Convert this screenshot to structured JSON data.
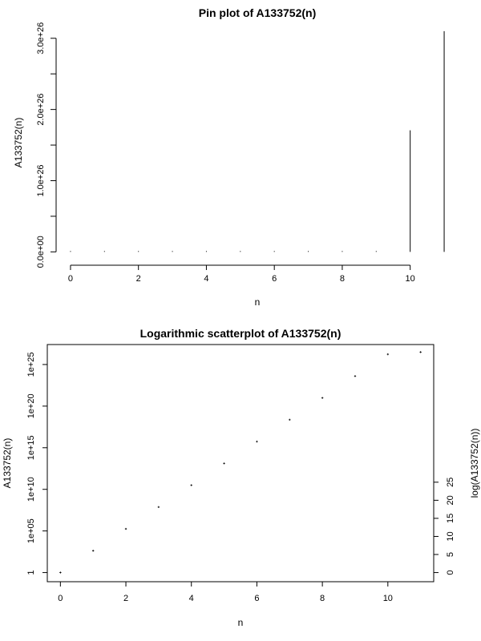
{
  "chart_data": [
    {
      "type": "bar",
      "subtype": "pin",
      "title": "Pin plot of A133752(n)",
      "xlabel": "n",
      "ylabel": "A133752(n)",
      "x": [
        0,
        1,
        2,
        3,
        4,
        5,
        6,
        7,
        8,
        9,
        10,
        11
      ],
      "y": [
        1,
        420,
        176400,
        74088000,
        31116960000,
        13069123200000,
        5489031744000000,
        2305393332480000000,
        968265199641600000000,
        406671383849472000000000,
        170801981216778240000000000,
        310000000000000000000000000
      ],
      "xlim": [
        -0.4,
        11.4
      ],
      "ylim": [
        -1.2e+25,
        3.2e+26
      ],
      "xticks": [
        0,
        2,
        4,
        6,
        8,
        10
      ],
      "xtick_labels": [
        "0",
        "2",
        "4",
        "6",
        "8",
        "10"
      ],
      "yticks": [
        0,
        1e+26,
        2e+26,
        3e+26
      ],
      "ytick_labels": [
        "0.0e+00",
        "1.0e+26",
        "2.0e+26",
        "3.0e+26"
      ],
      "yticks_minor": [
        5e+25,
        1.5e+26,
        2.5e+26
      ]
    },
    {
      "type": "scatter",
      "title": "Logarithmic scatterplot of A133752(n)",
      "xlabel": "n",
      "ylabel": "A133752(n)",
      "ylabel_right": "log(A133752(n))",
      "yscale": "log",
      "x": [
        0,
        1,
        2,
        3,
        4,
        5,
        6,
        7,
        8,
        9,
        10,
        11
      ],
      "y": [
        1,
        420,
        176400,
        74088000,
        31116960000,
        13069123200000,
        5489031744000000,
        2305393332480000000,
        968265199641600000000,
        406671383849472000000000,
        170801981216778240000000000,
        310000000000000000000000000
      ],
      "xlim": [
        -0.4,
        11.4
      ],
      "ylim_log": [
        -1.1,
        27.4
      ],
      "xticks": [
        0,
        2,
        4,
        6,
        8,
        10
      ],
      "xtick_labels": [
        "0",
        "2",
        "4",
        "6",
        "8",
        "10"
      ],
      "yticks_left": [
        1,
        100000,
        10000000000,
        1000000000000000,
        100000000000000000000,
        10000000000000000000000000
      ],
      "ytick_labels_left": [
        "1",
        "1e+05",
        "1e+10",
        "1e+15",
        "1e+20",
        "1e+25"
      ],
      "yticks_right": [
        0,
        5,
        10,
        15,
        20,
        25
      ],
      "ytick_labels_right": [
        "0",
        "5",
        "10",
        "15",
        "20",
        "25"
      ]
    }
  ]
}
